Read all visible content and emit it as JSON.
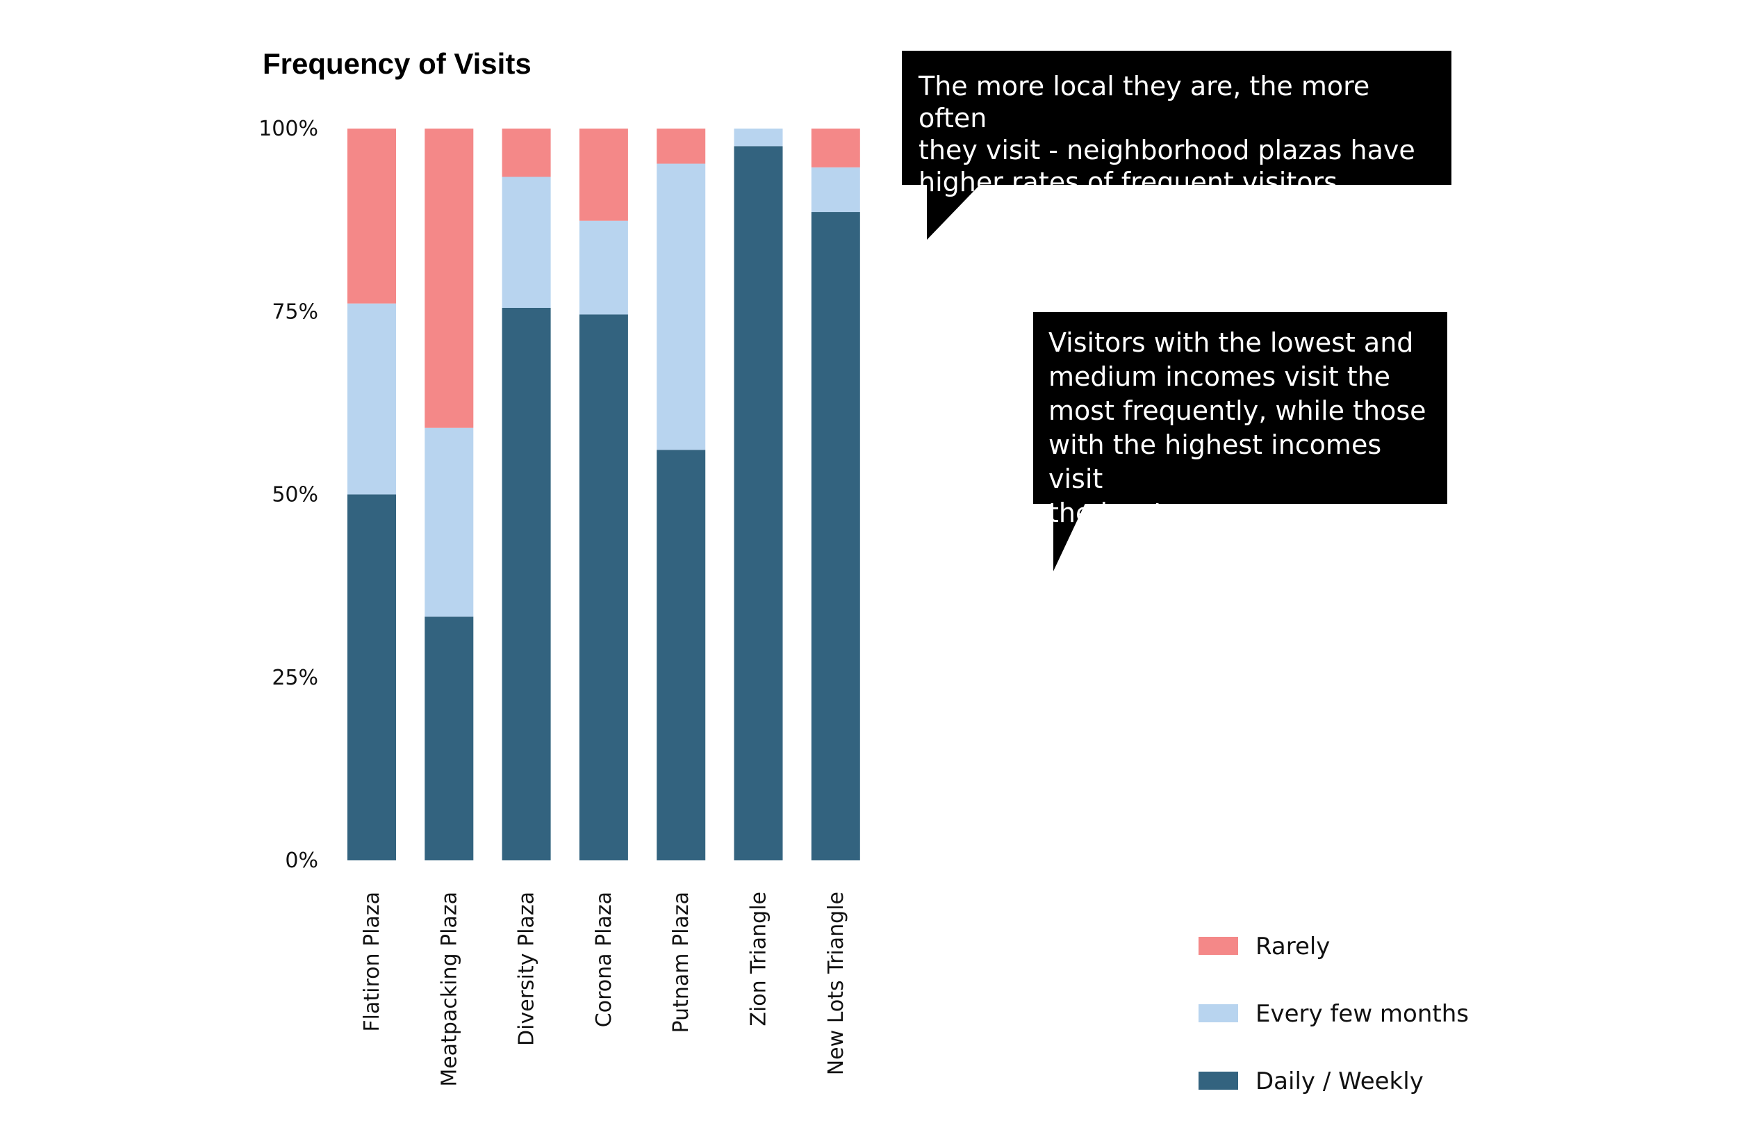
{
  "chart_data": {
    "type": "bar",
    "stacked": true,
    "title": "Frequency of Visits",
    "xlabel": "",
    "ylabel": "",
    "ylim": [
      0,
      100
    ],
    "yticks": [
      0,
      25,
      50,
      75,
      100
    ],
    "ytick_labels": [
      "0%",
      "25%",
      "50%",
      "75%",
      "100%"
    ],
    "categories": [
      "Flatiron Plaza",
      "Meatpacking Plaza",
      "Diversity Plaza",
      "Corona Plaza",
      "Putnam Plaza",
      "Zion Triangle",
      "New Lots Triangle"
    ],
    "series": [
      {
        "name": "Daily / Weekly",
        "color": "#33637f",
        "values": [
          50,
          33.3,
          75.5,
          74.6,
          56.1,
          97.6,
          88.6
        ]
      },
      {
        "name": "Every few months",
        "color": "#b8d4ef",
        "values": [
          26.1,
          25.8,
          17.9,
          12.8,
          39.1,
          2.4,
          6.1
        ]
      },
      {
        "name": "Rarely",
        "color": "#f48888",
        "values": [
          23.9,
          40.9,
          6.6,
          12.6,
          4.8,
          0,
          5.3
        ]
      }
    ],
    "legend": {
      "position": "bottom-right",
      "order": [
        "Rarely",
        "Every few months",
        "Daily / Weekly"
      ]
    },
    "grid": false,
    "annotations": [
      "The more local they are, the more often they visit - neighborhood plazas have higher rates of frequent visitors.",
      "Visitors with the lowest and medium incomes visit the most frequently, while those with the highest incomes visit the least"
    ]
  },
  "callouts": {
    "first": {
      "lines": [
        "The more local they are, the more often",
        "they visit - neighborhood plazas have",
        "higher rates of frequent visitors."
      ]
    },
    "second": {
      "lines": [
        "Visitors with the lowest and",
        "medium incomes visit the",
        "most frequently, while those",
        "with the highest incomes visit",
        "the least"
      ]
    }
  }
}
